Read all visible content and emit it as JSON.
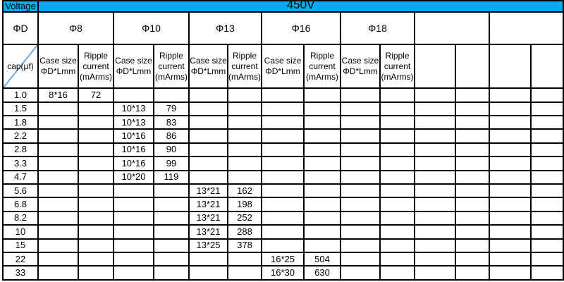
{
  "colors": {
    "header_background": "#00AEEF",
    "diagonal_line": "#7BA7DC",
    "border": "#000000",
    "text": "#000000",
    "background": "#FFFFFF"
  },
  "table": {
    "voltage_label": "Voltage",
    "voltage_value": "450V",
    "diameter_row_label": "ΦD",
    "cap_cell_label": "cap(μf)",
    "diameters": [
      "Φ8",
      "Φ10",
      "Φ13",
      "Φ16",
      "Φ18",
      "",
      ""
    ],
    "num_labeled_pairs": 5,
    "pair_headers": {
      "case_size_lines": [
        "Case size",
        "ΦD*Lmm"
      ],
      "ripple_lines": [
        "Ripple",
        "current",
        "(mArms)"
      ]
    },
    "rows": [
      {
        "cap": "1.0",
        "values": [
          "8*16",
          "72",
          "",
          "",
          "",
          "",
          "",
          "",
          "",
          "",
          "",
          "",
          "",
          ""
        ]
      },
      {
        "cap": "1.5",
        "values": [
          "",
          "",
          "10*13",
          "79",
          "",
          "",
          "",
          "",
          "",
          "",
          "",
          "",
          "",
          ""
        ]
      },
      {
        "cap": "1.8",
        "values": [
          "",
          "",
          "10*13",
          "83",
          "",
          "",
          "",
          "",
          "",
          "",
          "",
          "",
          "",
          ""
        ]
      },
      {
        "cap": "2.2",
        "values": [
          "",
          "",
          "10*16",
          "86",
          "",
          "",
          "",
          "",
          "",
          "",
          "",
          "",
          "",
          ""
        ]
      },
      {
        "cap": "2.8",
        "values": [
          "",
          "",
          "10*16",
          "90",
          "",
          "",
          "",
          "",
          "",
          "",
          "",
          "",
          "",
          ""
        ]
      },
      {
        "cap": "3.3",
        "values": [
          "",
          "",
          "10*16",
          "99",
          "",
          "",
          "",
          "",
          "",
          "",
          "",
          "",
          "",
          ""
        ]
      },
      {
        "cap": "4.7",
        "values": [
          "",
          "",
          "10*20",
          "119",
          "",
          "",
          "",
          "",
          "",
          "",
          "",
          "",
          "",
          ""
        ]
      },
      {
        "cap": "5.6",
        "values": [
          "",
          "",
          "",
          "",
          "13*21",
          "162",
          "",
          "",
          "",
          "",
          "",
          "",
          "",
          ""
        ]
      },
      {
        "cap": "6.8",
        "values": [
          "",
          "",
          "",
          "",
          "13*21",
          "198",
          "",
          "",
          "",
          "",
          "",
          "",
          "",
          ""
        ]
      },
      {
        "cap": "8.2",
        "values": [
          "",
          "",
          "",
          "",
          "13*21",
          "252",
          "",
          "",
          "",
          "",
          "",
          "",
          "",
          ""
        ]
      },
      {
        "cap": "10",
        "values": [
          "",
          "",
          "",
          "",
          "13*21",
          "288",
          "",
          "",
          "",
          "",
          "",
          "",
          "",
          ""
        ]
      },
      {
        "cap": "15",
        "values": [
          "",
          "",
          "",
          "",
          "13*25",
          "378",
          "",
          "",
          "",
          "",
          "",
          "",
          "",
          ""
        ]
      },
      {
        "cap": "22",
        "values": [
          "",
          "",
          "",
          "",
          "",
          "",
          "16*25",
          "504",
          "",
          "",
          "",
          "",
          "",
          ""
        ]
      },
      {
        "cap": "33",
        "values": [
          "",
          "",
          "",
          "",
          "",
          "",
          "16*30",
          "630",
          "",
          "",
          "",
          "",
          "",
          ""
        ]
      }
    ]
  }
}
